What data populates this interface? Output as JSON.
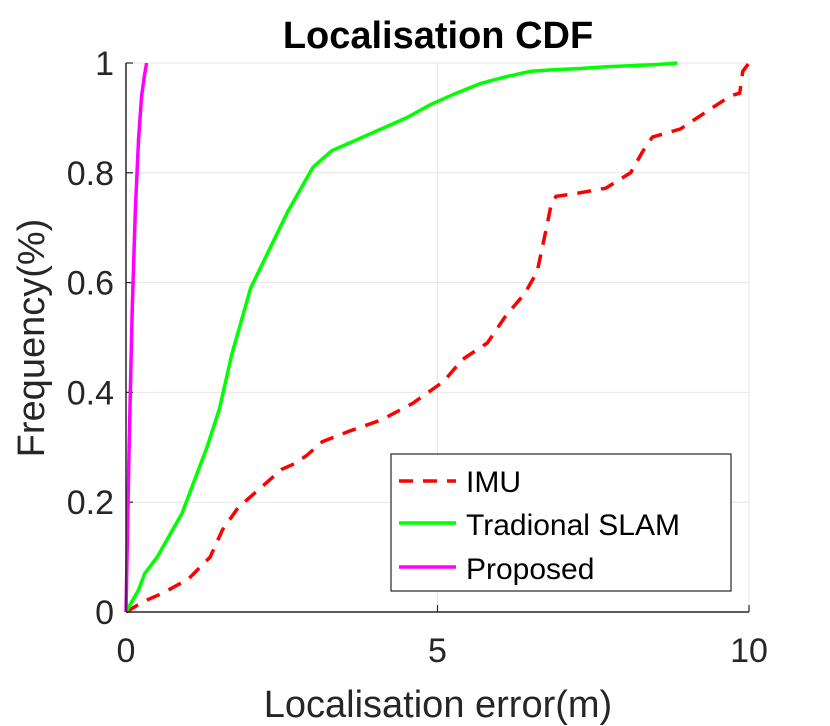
{
  "chart_data": {
    "type": "line",
    "title": "Localisation CDF",
    "xlabel": "Localisation error(m)",
    "ylabel": "Frequency(%)",
    "xlim": [
      0,
      10
    ],
    "ylim": [
      0,
      1
    ],
    "xticks": [
      0,
      5,
      10
    ],
    "xtick_labels": [
      "0",
      "5",
      "10"
    ],
    "yticks": [
      0,
      0.2,
      0.4,
      0.6,
      0.8,
      1
    ],
    "ytick_labels": [
      "0",
      "0.2",
      "0.4",
      "0.6",
      "0.8",
      "1"
    ],
    "grid": true,
    "legend_position": "bottom-right",
    "series": [
      {
        "name": "IMU",
        "color": "#ff0000",
        "style": "dashed",
        "x": [
          0.0,
          0.3,
          0.6,
          1.0,
          1.35,
          1.55,
          1.8,
          2.1,
          2.5,
          2.7,
          2.9,
          3.15,
          3.6,
          4.1,
          4.6,
          5.1,
          5.4,
          5.8,
          6.1,
          6.4,
          6.6,
          6.75,
          6.82,
          6.9,
          7.2,
          7.7,
          8.1,
          8.3,
          8.45,
          8.9,
          9.3,
          9.7,
          9.85,
          9.9,
          10.0
        ],
        "y": [
          0.0,
          0.02,
          0.035,
          0.06,
          0.1,
          0.15,
          0.19,
          0.22,
          0.26,
          0.27,
          0.285,
          0.31,
          0.33,
          0.35,
          0.38,
          0.42,
          0.46,
          0.49,
          0.54,
          0.58,
          0.62,
          0.7,
          0.74,
          0.757,
          0.762,
          0.772,
          0.8,
          0.84,
          0.865,
          0.88,
          0.91,
          0.94,
          0.945,
          0.985,
          1.0
        ]
      },
      {
        "name": "Tradional SLAM",
        "color": "#00ff00",
        "style": "solid",
        "x": [
          0.0,
          0.1,
          0.2,
          0.3,
          0.5,
          0.7,
          0.9,
          1.1,
          1.3,
          1.5,
          1.7,
          1.85,
          2.0,
          2.3,
          2.6,
          2.9,
          3.0,
          3.3,
          3.7,
          4.1,
          4.5,
          4.9,
          5.3,
          5.7,
          6.1,
          6.5,
          6.9,
          7.3,
          7.7,
          8.1,
          8.5,
          8.85
        ],
        "y": [
          0.0,
          0.02,
          0.04,
          0.07,
          0.1,
          0.14,
          0.18,
          0.24,
          0.3,
          0.37,
          0.47,
          0.53,
          0.59,
          0.66,
          0.73,
          0.79,
          0.81,
          0.84,
          0.86,
          0.88,
          0.9,
          0.925,
          0.945,
          0.963,
          0.975,
          0.985,
          0.988,
          0.99,
          0.993,
          0.995,
          0.997,
          1.0
        ]
      },
      {
        "name": "Proposed",
        "color": "#ff00ff",
        "style": "solid",
        "x": [
          0.0,
          0.05,
          0.1,
          0.15,
          0.2,
          0.25,
          0.3,
          0.33
        ],
        "y": [
          0.0,
          0.3,
          0.55,
          0.73,
          0.86,
          0.94,
          0.98,
          1.0
        ]
      }
    ]
  }
}
